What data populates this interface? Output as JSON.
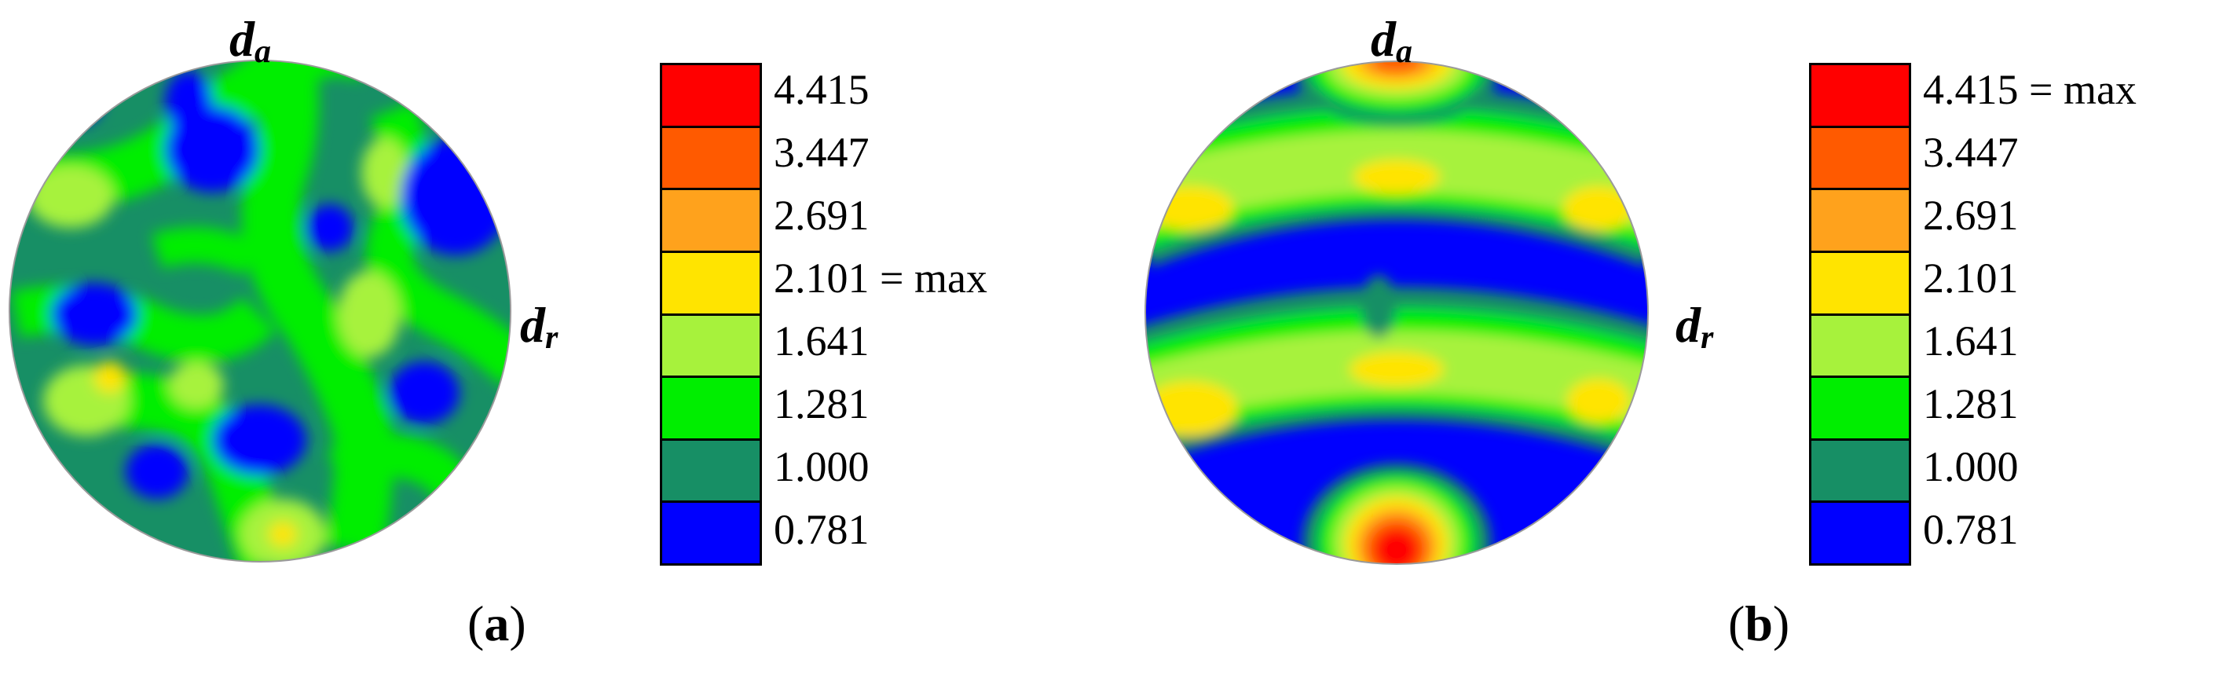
{
  "axis_labels": {
    "top_main": "d",
    "top_sub": "a",
    "right_main": "d",
    "right_sub": "r"
  },
  "legend_levels": [
    "4.415",
    "3.447",
    "2.691",
    "2.101",
    "1.641",
    "1.281",
    "1.000",
    "0.781"
  ],
  "legend_colors": [
    "#ff0000",
    "#ff5a00",
    "#ffa21c",
    "#ffe400",
    "#a7f23c",
    "#00ee00",
    "#178f65",
    "#0000ff"
  ],
  "max_suffix": "= max",
  "panel_a": {
    "caption_open": "(",
    "caption_letter": "a",
    "caption_close": ")",
    "max_level": "2.101"
  },
  "panel_b": {
    "caption_open": "(",
    "caption_letter": "b",
    "caption_close": ")",
    "max_level": "4.415"
  }
}
